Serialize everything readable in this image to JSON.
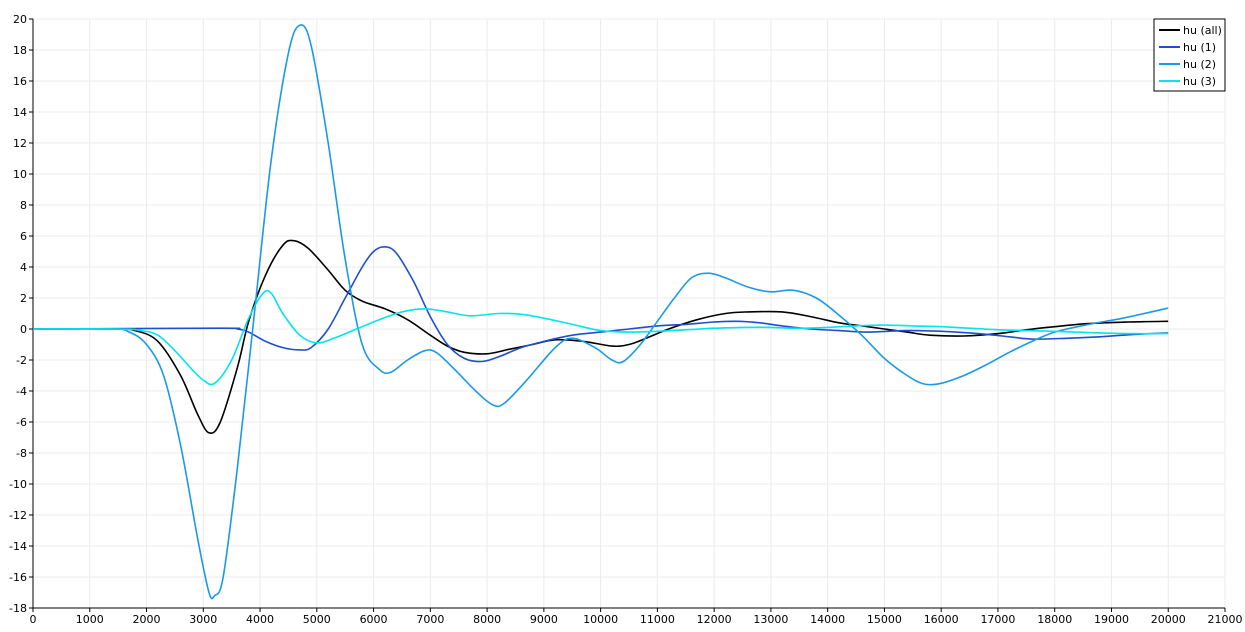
{
  "chart_data": {
    "type": "line",
    "xlim": [
      0,
      21000
    ],
    "ylim": [
      -18,
      20
    ],
    "x_ticks": [
      0,
      1000,
      2000,
      3000,
      4000,
      5000,
      6000,
      7000,
      8000,
      9000,
      10000,
      11000,
      12000,
      13000,
      14000,
      15000,
      16000,
      17000,
      18000,
      19000,
      20000,
      21000
    ],
    "y_ticks": [
      -18,
      -16,
      -14,
      -12,
      -10,
      -8,
      -6,
      -4,
      -2,
      0,
      2,
      4,
      6,
      8,
      10,
      12,
      14,
      16,
      18,
      20
    ],
    "grid": true,
    "legend_position": "top-right",
    "series": [
      {
        "name": "hu (all)",
        "color": "#000000",
        "points": [
          [
            0,
            0
          ],
          [
            1400,
            0
          ],
          [
            1800,
            -0.1
          ],
          [
            2200,
            -0.8
          ],
          [
            2600,
            -3
          ],
          [
            2900,
            -5.5
          ],
          [
            3100,
            -6.7
          ],
          [
            3300,
            -6
          ],
          [
            3600,
            -2.5
          ],
          [
            3800,
            0.5
          ],
          [
            4100,
            3.5
          ],
          [
            4400,
            5.4
          ],
          [
            4600,
            5.7
          ],
          [
            4850,
            5.2
          ],
          [
            5200,
            3.8
          ],
          [
            5500,
            2.5
          ],
          [
            5800,
            1.8
          ],
          [
            6200,
            1.3
          ],
          [
            6600,
            0.6
          ],
          [
            7000,
            -0.4
          ],
          [
            7300,
            -1.1
          ],
          [
            7600,
            -1.5
          ],
          [
            8000,
            -1.6
          ],
          [
            8400,
            -1.3
          ],
          [
            8800,
            -1
          ],
          [
            9200,
            -0.7
          ],
          [
            9700,
            -0.8
          ],
          [
            10200,
            -1.1
          ],
          [
            10500,
            -1
          ],
          [
            10800,
            -0.6
          ],
          [
            11200,
            0
          ],
          [
            11700,
            0.6
          ],
          [
            12200,
            1
          ],
          [
            12600,
            1.1
          ],
          [
            13200,
            1.1
          ],
          [
            13700,
            0.8
          ],
          [
            14200,
            0.4
          ],
          [
            14600,
            0.2
          ],
          [
            15000,
            0
          ],
          [
            15400,
            -0.2
          ],
          [
            15800,
            -0.4
          ],
          [
            16400,
            -0.45
          ],
          [
            17000,
            -0.3
          ],
          [
            17500,
            -0.05
          ],
          [
            18000,
            0.15
          ],
          [
            18600,
            0.35
          ],
          [
            19300,
            0.45
          ],
          [
            20000,
            0.5
          ]
        ]
      },
      {
        "name": "hu (1)",
        "color": "#1f4fcf",
        "points": [
          [
            0,
            0
          ],
          [
            3300,
            0.05
          ],
          [
            3600,
            0
          ],
          [
            3800,
            -0.2
          ],
          [
            4100,
            -0.8
          ],
          [
            4400,
            -1.2
          ],
          [
            4700,
            -1.35
          ],
          [
            4900,
            -1.2
          ],
          [
            5200,
            0
          ],
          [
            5500,
            2
          ],
          [
            5800,
            4
          ],
          [
            6000,
            5
          ],
          [
            6200,
            5.3
          ],
          [
            6400,
            4.9
          ],
          [
            6700,
            3.1
          ],
          [
            7000,
            0.8
          ],
          [
            7300,
            -1
          ],
          [
            7600,
            -1.9
          ],
          [
            7900,
            -2.1
          ],
          [
            8200,
            -1.8
          ],
          [
            8600,
            -1.2
          ],
          [
            9000,
            -0.8
          ],
          [
            9500,
            -0.4
          ],
          [
            10000,
            -0.2
          ],
          [
            10500,
            0
          ],
          [
            11000,
            0.2
          ],
          [
            11500,
            0.3
          ],
          [
            12000,
            0.45
          ],
          [
            12400,
            0.5
          ],
          [
            12800,
            0.4
          ],
          [
            13200,
            0.2
          ],
          [
            13700,
            0
          ],
          [
            14200,
            -0.1
          ],
          [
            14700,
            -0.2
          ],
          [
            15500,
            -0.1
          ],
          [
            16500,
            -0.25
          ],
          [
            17200,
            -0.5
          ],
          [
            17600,
            -0.65
          ],
          [
            18200,
            -0.6
          ],
          [
            18800,
            -0.5
          ],
          [
            19400,
            -0.35
          ],
          [
            20000,
            -0.25
          ]
        ]
      },
      {
        "name": "hu (2)",
        "color": "#1a9ae6",
        "points": [
          [
            0,
            0
          ],
          [
            1400,
            0
          ],
          [
            1700,
            -0.2
          ],
          [
            2000,
            -1
          ],
          [
            2300,
            -3
          ],
          [
            2600,
            -7.5
          ],
          [
            2900,
            -13.5
          ],
          [
            3100,
            -17
          ],
          [
            3200,
            -17.2
          ],
          [
            3350,
            -16
          ],
          [
            3600,
            -9
          ],
          [
            3900,
            1
          ],
          [
            4200,
            11
          ],
          [
            4500,
            17.8
          ],
          [
            4700,
            19.6
          ],
          [
            4900,
            18.3
          ],
          [
            5200,
            12
          ],
          [
            5500,
            4.5
          ],
          [
            5800,
            -1
          ],
          [
            6100,
            -2.6
          ],
          [
            6300,
            -2.8
          ],
          [
            6600,
            -2
          ],
          [
            6900,
            -1.4
          ],
          [
            7100,
            -1.5
          ],
          [
            7400,
            -2.5
          ],
          [
            7800,
            -4
          ],
          [
            8100,
            -4.9
          ],
          [
            8300,
            -4.8
          ],
          [
            8700,
            -3.3
          ],
          [
            9200,
            -1.2
          ],
          [
            9500,
            -0.6
          ],
          [
            9900,
            -1.2
          ],
          [
            10200,
            -2
          ],
          [
            10400,
            -2.1
          ],
          [
            10700,
            -1
          ],
          [
            11000,
            0.5
          ],
          [
            11300,
            2
          ],
          [
            11600,
            3.3
          ],
          [
            11900,
            3.6
          ],
          [
            12200,
            3.3
          ],
          [
            12600,
            2.7
          ],
          [
            13000,
            2.4
          ],
          [
            13400,
            2.5
          ],
          [
            13800,
            2
          ],
          [
            14200,
            0.9
          ],
          [
            14600,
            -0.4
          ],
          [
            15000,
            -1.9
          ],
          [
            15400,
            -3
          ],
          [
            15700,
            -3.55
          ],
          [
            16000,
            -3.5
          ],
          [
            16400,
            -3
          ],
          [
            16800,
            -2.3
          ],
          [
            17200,
            -1.5
          ],
          [
            17600,
            -0.8
          ],
          [
            18000,
            -0.2
          ],
          [
            18600,
            0.3
          ],
          [
            19200,
            0.7
          ],
          [
            20000,
            1.35
          ]
        ]
      },
      {
        "name": "hu (3)",
        "color": "#00e5ee",
        "points": [
          [
            0,
            0
          ],
          [
            1500,
            0
          ],
          [
            1900,
            -0.1
          ],
          [
            2200,
            -0.4
          ],
          [
            2500,
            -1.4
          ],
          [
            2800,
            -2.6
          ],
          [
            3000,
            -3.3
          ],
          [
            3200,
            -3.5
          ],
          [
            3500,
            -2
          ],
          [
            3800,
            0.7
          ],
          [
            4050,
            2.3
          ],
          [
            4200,
            2.3
          ],
          [
            4400,
            1
          ],
          [
            4700,
            -0.4
          ],
          [
            5000,
            -0.9
          ],
          [
            5300,
            -0.6
          ],
          [
            5700,
            0
          ],
          [
            6100,
            0.6
          ],
          [
            6500,
            1.1
          ],
          [
            6900,
            1.3
          ],
          [
            7300,
            1.1
          ],
          [
            7700,
            0.85
          ],
          [
            8200,
            1
          ],
          [
            8600,
            0.95
          ],
          [
            9000,
            0.7
          ],
          [
            9500,
            0.3
          ],
          [
            10000,
            -0.1
          ],
          [
            10500,
            -0.2
          ],
          [
            11000,
            -0.15
          ],
          [
            11500,
            -0.05
          ],
          [
            12000,
            0.05
          ],
          [
            12500,
            0.1
          ],
          [
            13000,
            0.1
          ],
          [
            13500,
            0.05
          ],
          [
            14000,
            0.1
          ],
          [
            14500,
            0.2
          ],
          [
            15000,
            0.25
          ],
          [
            15500,
            0.2
          ],
          [
            16000,
            0.15
          ],
          [
            16500,
            0.05
          ],
          [
            17000,
            -0.05
          ],
          [
            17500,
            -0.1
          ],
          [
            18000,
            -0.15
          ],
          [
            18800,
            -0.25
          ],
          [
            19400,
            -0.3
          ],
          [
            20000,
            -0.3
          ]
        ]
      }
    ]
  }
}
